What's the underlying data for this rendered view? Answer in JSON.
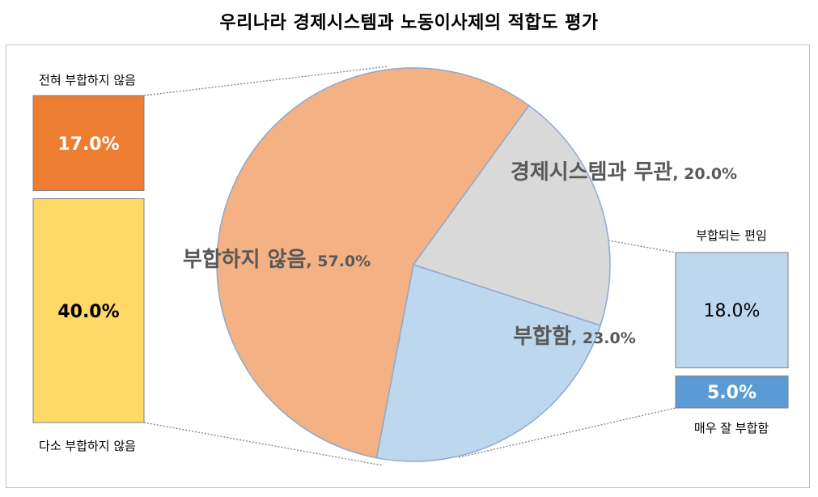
{
  "chart_data": {
    "type": "pie",
    "title": "우리나라 경제시스템과 노동이사제의 적합도 평가",
    "slices": [
      {
        "label": "부합하지 않음",
        "value": 57.0,
        "value_label": "57.0%",
        "color": "#F4B183"
      },
      {
        "label": "경제시스템과 무관",
        "value": 20.0,
        "value_label": "20.0%",
        "color": "#D9D9D9"
      },
      {
        "label": "부합함",
        "value": 23.0,
        "value_label": "23.0%",
        "color": "#BDD7EE"
      }
    ],
    "breakdowns": [
      {
        "parent": "부합하지 않음",
        "items": [
          {
            "label": "전혀 부합하지 않음",
            "value": 17.0,
            "value_label": "17.0%",
            "color": "#ED7D31",
            "text_color": "#ffffff"
          },
          {
            "label": "다소 부합하지 않음",
            "value": 40.0,
            "value_label": "40.0%",
            "color": "#FFD966",
            "text_color": "#000000"
          }
        ]
      },
      {
        "parent": "부합함",
        "items": [
          {
            "label": "부합되는 편임",
            "value": 18.0,
            "value_label": "18.0%",
            "color": "#BDD7EE",
            "text_color": "#000000"
          },
          {
            "label": "매우 잘 부합함",
            "value": 5.0,
            "value_label": "5.0%",
            "color": "#5B9BD5",
            "text_color": "#ffffff"
          }
        ]
      }
    ]
  }
}
